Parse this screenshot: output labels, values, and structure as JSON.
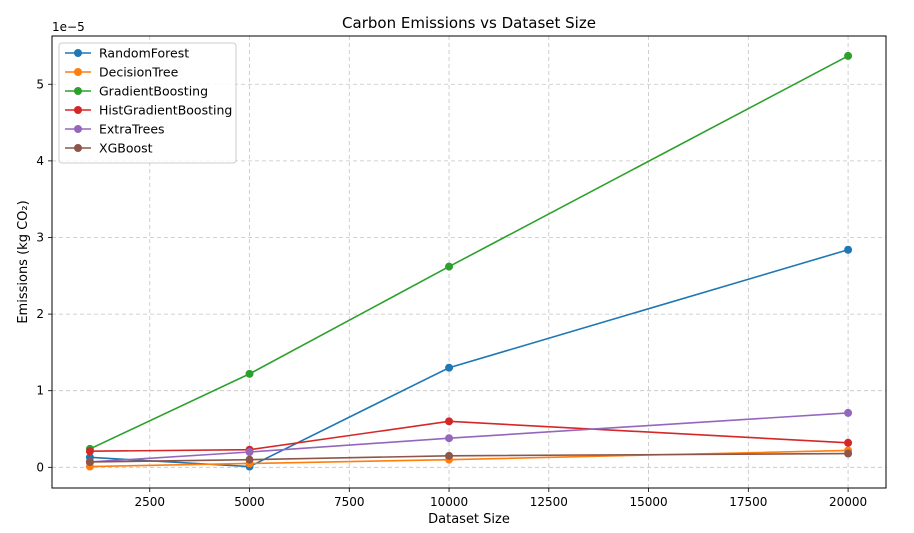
{
  "chart_data": {
    "type": "line",
    "title": "Carbon Emissions vs Dataset Size",
    "xlabel": "Dataset Size",
    "ylabel": "Emissions (kg CO₂)",
    "y_offset_text": "1e−5",
    "y_scale_factor": 1e-05,
    "xlim": [
      50,
      20950
    ],
    "ylim": [
      -0.27,
      5.63
    ],
    "x_ticks": [
      2500,
      5000,
      7500,
      10000,
      12500,
      15000,
      17500,
      20000
    ],
    "y_ticks": [
      0,
      1,
      2,
      3,
      4,
      5
    ],
    "grid": true,
    "legend_position": "upper-left",
    "x": [
      1000,
      5000,
      10000,
      20000
    ],
    "series": [
      {
        "name": "RandomForest",
        "color": "#1f77b4",
        "values": [
          0.13,
          0.01,
          1.3,
          2.84
        ]
      },
      {
        "name": "DecisionTree",
        "color": "#ff7f0e",
        "values": [
          0.01,
          0.05,
          0.1,
          0.22
        ]
      },
      {
        "name": "GradientBoosting",
        "color": "#2ca02c",
        "values": [
          0.24,
          1.22,
          2.62,
          5.37
        ]
      },
      {
        "name": "HistGradientBoosting",
        "color": "#d62728",
        "values": [
          0.21,
          0.23,
          0.6,
          0.32
        ]
      },
      {
        "name": "ExtraTrees",
        "color": "#9467bd",
        "values": [
          0.07,
          0.2,
          0.38,
          0.71
        ]
      },
      {
        "name": "XGBoost",
        "color": "#8c564b",
        "values": [
          0.07,
          0.1,
          0.15,
          0.18
        ]
      }
    ]
  }
}
